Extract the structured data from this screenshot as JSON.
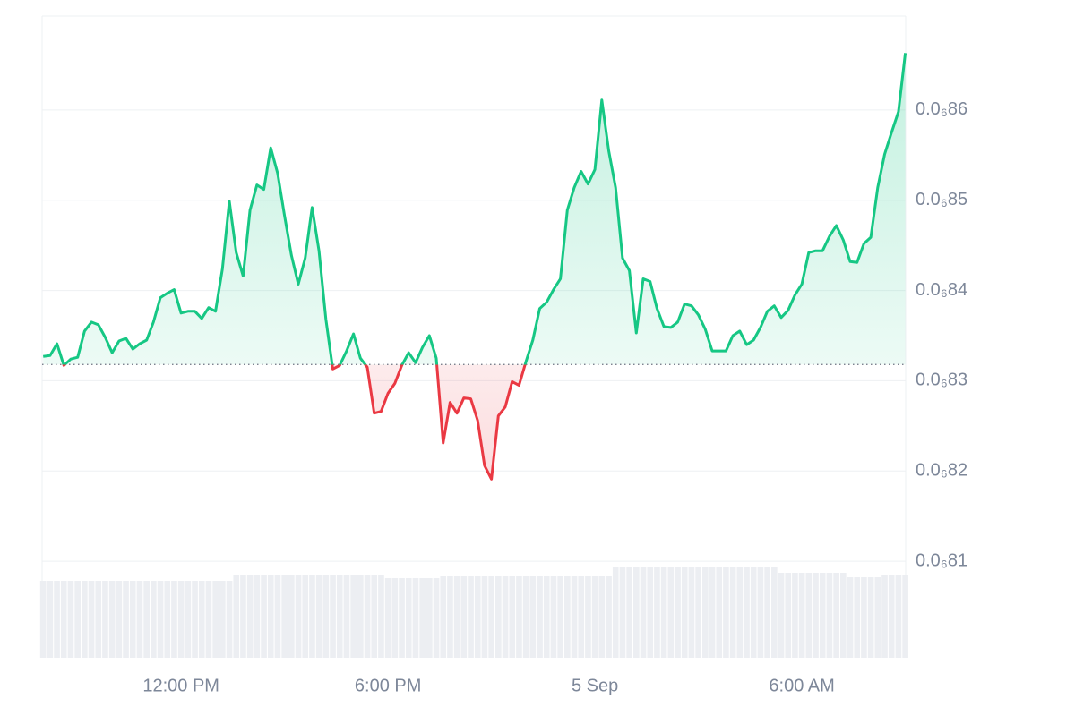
{
  "chart_data": {
    "type": "line",
    "x": [
      8.0,
      8.2,
      8.4,
      8.6,
      8.8,
      9.0,
      9.2,
      9.4,
      9.6,
      9.8,
      10.0,
      10.2,
      10.4,
      10.6,
      10.8,
      11.0,
      11.2,
      11.4,
      11.6,
      11.8,
      12.0,
      12.2,
      12.4,
      12.6,
      12.8,
      13.0,
      13.2,
      13.4,
      13.6,
      13.8,
      14.0,
      14.2,
      14.4,
      14.6,
      14.8,
      15.0,
      15.2,
      15.4,
      15.6,
      15.8,
      16.0,
      16.2,
      16.4,
      16.6,
      16.8,
      17.0,
      17.2,
      17.4,
      17.6,
      17.8,
      18.0,
      18.2,
      18.4,
      18.6,
      18.8,
      19.0,
      19.2,
      19.4,
      19.6,
      19.8,
      20.0,
      20.2,
      20.4,
      20.6,
      20.8,
      21.0,
      21.2,
      21.4,
      21.6,
      21.8,
      22.0,
      22.2,
      22.4,
      22.6,
      22.8,
      23.0,
      23.2,
      23.4,
      23.6,
      23.8,
      24.0,
      24.2,
      24.4,
      24.6,
      24.8,
      25.0,
      25.2,
      25.4,
      25.6,
      25.8,
      26.0,
      26.2,
      26.4,
      26.6,
      26.8,
      27.0,
      27.2,
      27.4,
      27.6,
      27.8,
      28.0,
      28.2,
      28.4,
      28.6,
      28.8,
      29.0,
      29.2,
      29.4,
      29.6,
      29.8,
      30.0,
      30.2,
      30.4,
      30.6,
      30.8,
      31.0,
      31.2,
      31.4,
      31.6,
      31.8,
      32.0,
      32.2,
      32.4,
      32.6,
      32.8,
      33.0
    ],
    "values": [
      8.327e-08,
      8.328e-08,
      8.341e-08,
      8.317e-08,
      8.324e-08,
      8.326e-08,
      8.355e-08,
      8.365e-08,
      8.362e-08,
      8.348e-08,
      8.331e-08,
      8.344e-08,
      8.347e-08,
      8.335e-08,
      8.341e-08,
      8.345e-08,
      8.365e-08,
      8.392e-08,
      8.397e-08,
      8.401e-08,
      8.375e-08,
      8.377e-08,
      8.377e-08,
      8.369e-08,
      8.381e-08,
      8.377e-08,
      8.424e-08,
      8.499e-08,
      8.442e-08,
      8.416e-08,
      8.489e-08,
      8.517e-08,
      8.512e-08,
      8.558e-08,
      8.53e-08,
      8.483e-08,
      8.439e-08,
      8.407e-08,
      8.436e-08,
      8.492e-08,
      8.444e-08,
      8.368e-08,
      8.313e-08,
      8.317e-08,
      8.333e-08,
      8.352e-08,
      8.325e-08,
      8.315e-08,
      8.264e-08,
      8.266e-08,
      8.286e-08,
      8.297e-08,
      8.317e-08,
      8.331e-08,
      8.32e-08,
      8.337e-08,
      8.35e-08,
      8.325e-08,
      8.231e-08,
      8.276e-08,
      8.264e-08,
      8.281e-08,
      8.28e-08,
      8.256e-08,
      8.206e-08,
      8.191e-08,
      8.261e-08,
      8.271e-08,
      8.299e-08,
      8.295e-08,
      8.321e-08,
      8.345e-08,
      8.38e-08,
      8.387e-08,
      8.401e-08,
      8.413e-08,
      8.489e-08,
      8.514e-08,
      8.532e-08,
      8.518e-08,
      8.534e-08,
      8.611e-08,
      8.555e-08,
      8.514e-08,
      8.436e-08,
      8.422e-08,
      8.353e-08,
      8.413e-08,
      8.41e-08,
      8.38e-08,
      8.36e-08,
      8.359e-08,
      8.365e-08,
      8.385e-08,
      8.383e-08,
      8.373e-08,
      8.357e-08,
      8.333e-08,
      8.333e-08,
      8.333e-08,
      8.35e-08,
      8.355e-08,
      8.34e-08,
      8.345e-08,
      8.359e-08,
      8.377e-08,
      8.383e-08,
      8.37e-08,
      8.378e-08,
      8.395e-08,
      8.407e-08,
      8.442e-08,
      8.444e-08,
      8.444e-08,
      8.46e-08,
      8.472e-08,
      8.456e-08,
      8.432e-08,
      8.431e-08,
      8.452e-08,
      8.459e-08,
      8.514e-08,
      8.551e-08,
      8.575e-08,
      8.598e-08,
      8.663e-08
    ],
    "volume": [
      86,
      86,
      86,
      86,
      86,
      86,
      86,
      86,
      86,
      86,
      86,
      86,
      86,
      86,
      86,
      86,
      86,
      86,
      86,
      86,
      86,
      86,
      86,
      86,
      86,
      86,
      86,
      86,
      92,
      92,
      92,
      92,
      92,
      92,
      92,
      92,
      92,
      92,
      92,
      92,
      92,
      92,
      93,
      93,
      93,
      93,
      93,
      93,
      93,
      93,
      89,
      89,
      89,
      89,
      89,
      89,
      89,
      89,
      91,
      91,
      91,
      91,
      91,
      91,
      91,
      91,
      91,
      91,
      91,
      91,
      91,
      91,
      91,
      91,
      91,
      91,
      91,
      91,
      91,
      91,
      91,
      91,
      91,
      101,
      101,
      101,
      101,
      101,
      101,
      101,
      101,
      101,
      101,
      101,
      101,
      101,
      101,
      101,
      101,
      101,
      101,
      101,
      101,
      101,
      101,
      101,
      101,
      95,
      95,
      95,
      95,
      95,
      95,
      95,
      95,
      95,
      95,
      90,
      90,
      90,
      90,
      90,
      92,
      92,
      92,
      92
    ],
    "baseline": 8.318e-08,
    "up_color": "#16c784",
    "down_color": "#ea3943",
    "xlim": [
      7.97,
      33.01
    ],
    "xticks": [
      {
        "value": 12,
        "label": "12:00 PM"
      },
      {
        "value": 18,
        "label": "6:00 PM"
      },
      {
        "value": 24,
        "label": "5 Sep"
      },
      {
        "value": 30,
        "label": "6:00 AM"
      }
    ],
    "ylim": [
      7.993e-08,
      8.704e-08
    ],
    "yticks": [
      {
        "value": 8.1e-08,
        "label": "0.0₆81"
      },
      {
        "value": 8.2e-08,
        "label": "0.0₆82"
      },
      {
        "value": 8.3e-08,
        "label": "0.0₆83"
      },
      {
        "value": 8.4e-08,
        "label": "0.0₆84"
      },
      {
        "value": 8.5e-08,
        "label": "0.0₆85"
      },
      {
        "value": 8.6e-08,
        "label": "0.0₆86"
      }
    ],
    "grid": true
  }
}
